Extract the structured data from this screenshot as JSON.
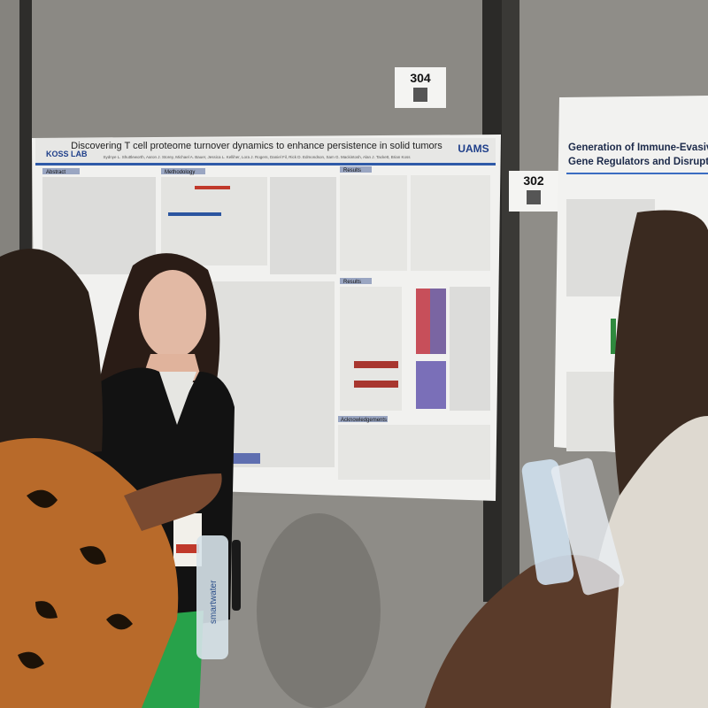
{
  "scene": {
    "booth_numbers": [
      "304",
      "302"
    ],
    "poster_left": {
      "title": "Discovering T cell proteome turnover dynamics to enhance persistence in solid tumors",
      "lab": "KOSS LAB",
      "institution": "UAMS",
      "sections": [
        "Abstract",
        "Methodology",
        "Results",
        "Results",
        "Acknowledgements"
      ]
    },
    "poster_right": {
      "title_lines": [
        "Generation of Immune-Evasiv",
        "Gene Regulators and Disrupti"
      ]
    },
    "bottle_label": "smartwater"
  }
}
